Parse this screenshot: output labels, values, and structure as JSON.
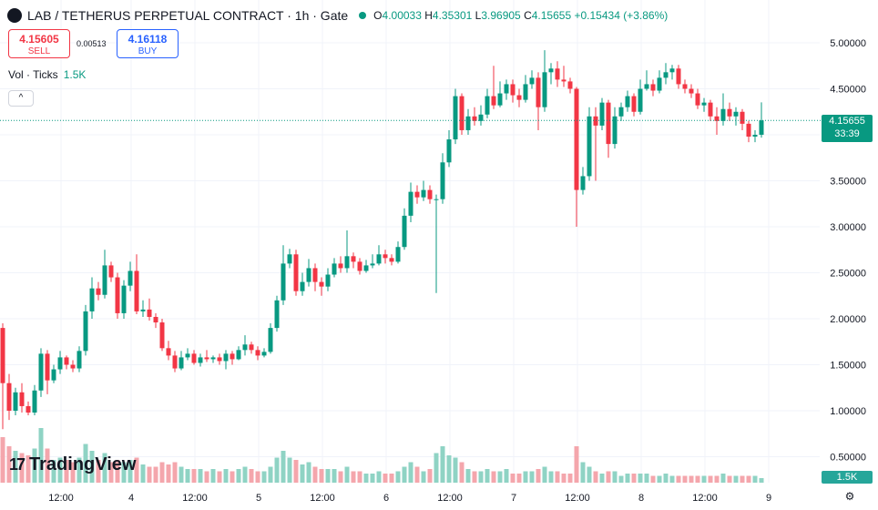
{
  "header": {
    "symbol": "LAB / TETHERUS PERPETUAL CONTRACT · 1h · Gate",
    "o_label": "O",
    "o_value": "4.00033",
    "h_label": "H",
    "h_value": "4.35301",
    "l_label": "L",
    "l_value": "3.96905",
    "c_label": "C",
    "c_value": "4.15655",
    "change": "+0.15434 (+3.86%)"
  },
  "trade": {
    "sell_price": "4.15605",
    "sell_label": "SELL",
    "spread": "0.00513",
    "buy_price": "4.16118",
    "buy_label": "BUY"
  },
  "volume_legend": {
    "label": "Vol · Ticks",
    "value": "1.5K"
  },
  "collapse_label": "^",
  "watermark": "TradingView",
  "price_tag": {
    "price": "4.15655",
    "countdown": "33:39"
  },
  "volume_tag": "1.5K",
  "colors": {
    "up": "#089981",
    "down": "#f23645",
    "up_vol": "#8fd3c4",
    "down_vol": "#f4a6ac",
    "grid": "#f0f3fa"
  },
  "chart_data": {
    "type": "candlestick",
    "y_ticks": [
      "5.00000",
      "4.50000",
      "4.00000",
      "3.50000",
      "3.00000",
      "2.50000",
      "2.00000",
      "1.50000",
      "1.00000",
      "0.50000"
    ],
    "y_tick_values": [
      5.0,
      4.5,
      4.0,
      3.5,
      3.0,
      2.5,
      2.0,
      1.5,
      1.0,
      0.5
    ],
    "ylim": [
      0.3,
      5.15
    ],
    "x_tick_labels": [
      "12:00",
      "4",
      "12:00",
      "5",
      "12:00",
      "6",
      "12:00",
      "7",
      "12:00",
      "8",
      "12:00",
      "9"
    ],
    "x_tick_index": [
      9,
      20,
      30,
      40,
      50,
      60,
      70,
      80,
      90,
      100,
      110,
      120
    ],
    "last_price": 4.15655,
    "candles": [
      [
        1.9,
        1.3,
        1.95,
        0.8
      ],
      [
        1.3,
        1.0,
        1.4,
        0.9
      ],
      [
        1.0,
        1.2,
        1.25,
        0.95
      ],
      [
        1.2,
        1.05,
        1.3,
        0.98
      ],
      [
        1.05,
        0.98,
        1.1,
        0.95
      ],
      [
        0.98,
        1.22,
        1.28,
        0.95
      ],
      [
        1.22,
        1.62,
        1.68,
        1.15
      ],
      [
        1.62,
        1.33,
        1.66,
        1.18
      ],
      [
        1.33,
        1.45,
        1.5,
        1.3
      ],
      [
        1.45,
        1.58,
        1.65,
        1.4
      ],
      [
        1.58,
        1.5,
        1.6,
        1.45
      ],
      [
        1.5,
        1.46,
        1.55,
        1.42
      ],
      [
        1.46,
        1.65,
        1.7,
        1.42
      ],
      [
        1.65,
        2.08,
        2.15,
        1.6
      ],
      [
        2.08,
        2.33,
        2.45,
        2.0
      ],
      [
        2.33,
        2.26,
        2.4,
        2.2
      ],
      [
        2.26,
        2.58,
        2.75,
        2.22
      ],
      [
        2.58,
        2.45,
        2.62,
        2.4
      ],
      [
        2.45,
        2.06,
        2.5,
        2.0
      ],
      [
        2.06,
        2.36,
        2.42,
        2.0
      ],
      [
        2.36,
        2.52,
        2.62,
        2.3
      ],
      [
        2.52,
        2.08,
        2.7,
        2.05
      ],
      [
        2.08,
        2.1,
        2.2,
        2.02
      ],
      [
        2.1,
        2.02,
        2.22,
        1.98
      ],
      [
        2.02,
        1.96,
        2.06,
        1.9
      ],
      [
        1.96,
        1.68,
        2.0,
        1.65
      ],
      [
        1.68,
        1.6,
        1.76,
        1.55
      ],
      [
        1.6,
        1.46,
        1.65,
        1.42
      ],
      [
        1.46,
        1.58,
        1.65,
        1.44
      ],
      [
        1.58,
        1.62,
        1.68,
        1.55
      ],
      [
        1.62,
        1.52,
        1.66,
        1.5
      ],
      [
        1.52,
        1.58,
        1.62,
        1.48
      ],
      [
        1.58,
        1.56,
        1.66,
        1.53
      ],
      [
        1.56,
        1.58,
        1.6,
        1.52
      ],
      [
        1.58,
        1.54,
        1.62,
        1.5
      ],
      [
        1.54,
        1.62,
        1.66,
        1.45
      ],
      [
        1.62,
        1.56,
        1.65,
        1.5
      ],
      [
        1.56,
        1.66,
        1.7,
        1.55
      ],
      [
        1.66,
        1.72,
        1.82,
        1.6
      ],
      [
        1.72,
        1.66,
        1.75,
        1.62
      ],
      [
        1.66,
        1.6,
        1.7,
        1.55
      ],
      [
        1.6,
        1.64,
        1.68,
        1.58
      ],
      [
        1.64,
        1.9,
        1.95,
        1.62
      ],
      [
        1.9,
        2.2,
        2.25,
        1.86
      ],
      [
        2.2,
        2.6,
        2.8,
        2.15
      ],
      [
        2.6,
        2.7,
        2.76,
        2.55
      ],
      [
        2.7,
        2.3,
        2.75,
        2.25
      ],
      [
        2.3,
        2.4,
        2.5,
        2.25
      ],
      [
        2.4,
        2.55,
        2.65,
        2.35
      ],
      [
        2.55,
        2.4,
        2.6,
        2.3
      ],
      [
        2.4,
        2.35,
        2.45,
        2.25
      ],
      [
        2.35,
        2.48,
        2.55,
        2.3
      ],
      [
        2.48,
        2.6,
        2.66,
        2.45
      ],
      [
        2.6,
        2.55,
        2.68,
        2.5
      ],
      [
        2.55,
        2.68,
        2.96,
        2.5
      ],
      [
        2.68,
        2.62,
        2.72,
        2.55
      ],
      [
        2.62,
        2.52,
        2.66,
        2.48
      ],
      [
        2.52,
        2.58,
        2.64,
        2.5
      ],
      [
        2.58,
        2.6,
        2.7,
        2.55
      ],
      [
        2.6,
        2.7,
        2.8,
        2.58
      ],
      [
        2.7,
        2.66,
        2.75,
        2.6
      ],
      [
        2.66,
        2.62,
        2.7,
        2.58
      ],
      [
        2.62,
        2.78,
        2.84,
        2.6
      ],
      [
        2.78,
        3.12,
        3.2,
        2.75
      ],
      [
        3.12,
        3.38,
        3.48,
        3.05
      ],
      [
        3.38,
        3.32,
        3.45,
        3.25
      ],
      [
        3.32,
        3.4,
        3.5,
        3.28
      ],
      [
        3.4,
        3.3,
        3.45,
        3.25
      ],
      [
        3.3,
        3.3,
        3.35,
        2.28
      ],
      [
        3.3,
        3.7,
        3.8,
        3.25
      ],
      [
        3.7,
        3.95,
        4.05,
        3.65
      ],
      [
        3.95,
        4.42,
        4.5,
        3.9
      ],
      [
        4.42,
        4.05,
        4.45,
        4.0
      ],
      [
        4.05,
        4.2,
        4.28,
        4.0
      ],
      [
        4.2,
        4.15,
        4.3,
        4.1
      ],
      [
        4.15,
        4.22,
        4.32,
        4.1
      ],
      [
        4.22,
        4.42,
        4.5,
        4.18
      ],
      [
        4.42,
        4.32,
        4.75,
        4.28
      ],
      [
        4.32,
        4.45,
        4.58,
        4.3
      ],
      [
        4.45,
        4.55,
        4.6,
        4.38
      ],
      [
        4.55,
        4.43,
        4.6,
        4.35
      ],
      [
        4.43,
        4.38,
        4.5,
        4.3
      ],
      [
        4.38,
        4.55,
        4.65,
        4.35
      ],
      [
        4.55,
        4.62,
        4.7,
        4.5
      ],
      [
        4.62,
        4.3,
        4.68,
        4.05
      ],
      [
        4.3,
        4.68,
        4.92,
        4.25
      ],
      [
        4.68,
        4.72,
        4.78,
        4.55
      ],
      [
        4.72,
        4.6,
        4.8,
        4.52
      ],
      [
        4.6,
        4.58,
        4.75,
        4.52
      ],
      [
        4.58,
        4.5,
        4.62,
        4.45
      ],
      [
        4.5,
        3.4,
        4.52,
        3.0
      ],
      [
        3.4,
        3.55,
        3.65,
        3.35
      ],
      [
        3.55,
        4.2,
        4.3,
        3.5
      ],
      [
        4.2,
        4.1,
        4.3,
        3.5
      ],
      [
        4.1,
        4.35,
        4.4,
        4.05
      ],
      [
        4.35,
        3.9,
        4.38,
        3.75
      ],
      [
        3.9,
        4.2,
        4.3,
        3.85
      ],
      [
        4.2,
        4.3,
        4.35,
        4.15
      ],
      [
        4.3,
        4.42,
        4.48,
        4.25
      ],
      [
        4.42,
        4.25,
        4.45,
        4.2
      ],
      [
        4.25,
        4.5,
        4.6,
        4.22
      ],
      [
        4.5,
        4.55,
        4.7,
        4.48
      ],
      [
        4.55,
        4.48,
        4.6,
        4.42
      ],
      [
        4.48,
        4.62,
        4.7,
        4.45
      ],
      [
        4.62,
        4.68,
        4.78,
        4.55
      ],
      [
        4.68,
        4.72,
        4.76,
        4.6
      ],
      [
        4.72,
        4.55,
        4.76,
        4.5
      ],
      [
        4.55,
        4.5,
        4.6,
        4.45
      ],
      [
        4.5,
        4.45,
        4.55,
        4.4
      ],
      [
        4.45,
        4.32,
        4.5,
        4.28
      ],
      [
        4.32,
        4.35,
        4.4,
        4.25
      ],
      [
        4.35,
        4.2,
        4.38,
        4.15
      ],
      [
        4.2,
        4.15,
        4.3,
        4.0
      ],
      [
        4.15,
        4.28,
        4.45,
        4.1
      ],
      [
        4.28,
        4.2,
        4.35,
        4.15
      ],
      [
        4.2,
        4.25,
        4.3,
        4.1
      ],
      [
        4.25,
        4.12,
        4.28,
        4.05
      ],
      [
        4.12,
        3.98,
        4.15,
        3.92
      ],
      [
        3.98,
        4.0,
        4.05,
        3.92
      ],
      [
        4.00033,
        4.15655,
        4.35301,
        3.96905
      ]
    ],
    "volumes": [
      2.0,
      1.6,
      1.4,
      1.3,
      1.2,
      1.5,
      2.4,
      1.5,
      1.0,
      1.1,
      1.0,
      0.9,
      1.1,
      1.7,
      1.4,
      1.0,
      1.3,
      0.9,
      1.0,
      0.9,
      1.0,
      1.1,
      0.8,
      0.7,
      0.7,
      0.9,
      0.8,
      0.9,
      0.7,
      0.6,
      0.6,
      0.6,
      0.5,
      0.6,
      0.5,
      0.6,
      0.5,
      0.6,
      0.7,
      0.6,
      0.5,
      0.5,
      0.7,
      1.1,
      1.4,
      1.1,
      1.0,
      0.8,
      0.9,
      0.7,
      0.6,
      0.6,
      0.6,
      0.5,
      0.7,
      0.5,
      0.5,
      0.4,
      0.4,
      0.5,
      0.4,
      0.4,
      0.5,
      0.7,
      0.9,
      0.7,
      0.5,
      0.6,
      1.3,
      1.6,
      1.2,
      1.1,
      0.9,
      0.6,
      0.5,
      0.5,
      0.6,
      0.5,
      0.5,
      0.6,
      0.4,
      0.4,
      0.5,
      0.5,
      0.6,
      0.7,
      0.5,
      0.5,
      0.4,
      0.4,
      1.6,
      0.9,
      0.7,
      0.5,
      0.4,
      0.5,
      0.5,
      0.3,
      0.4,
      0.4,
      0.4,
      0.4,
      0.3,
      0.3,
      0.4,
      0.3,
      0.3,
      0.3,
      0.3,
      0.3,
      0.3,
      0.3,
      0.3,
      0.4,
      0.3,
      0.3,
      0.3,
      0.3,
      0.3,
      0.2
    ]
  }
}
